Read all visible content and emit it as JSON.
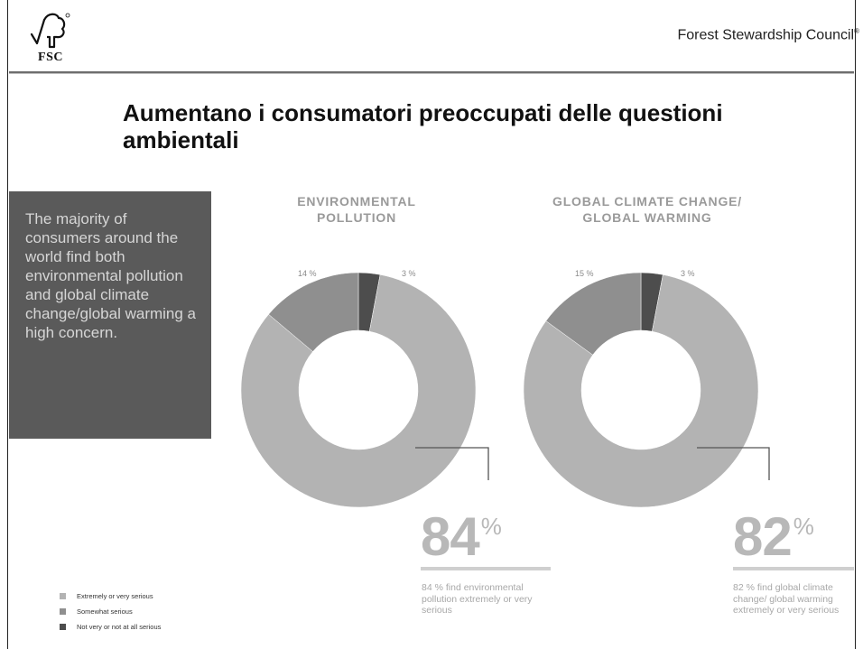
{
  "header": {
    "logo_text": "FSC",
    "organization": "Forest Stewardship Council",
    "organization_mark": "®"
  },
  "title": "Aumentano i consumatori preoccupati delle questioni ambientali",
  "callout_text": "The majority of consumers around the world find both environmental pollution and global climate change/global warming a high concern.",
  "colors": {
    "extremely_or_very_serious": "#b3b3b3",
    "somewhat_serious": "#8f8f8f",
    "not_very_or_not_at_all_serious": "#4d4d4d"
  },
  "chart_data": [
    {
      "type": "pie",
      "title": "ENVIRONMENTAL POLLUTION",
      "categories": [
        "Extremely or very serious",
        "Somewhat serious",
        "Not very or not at all serious"
      ],
      "values": [
        84,
        14,
        3
      ],
      "slice_labels": [
        "",
        "14 %",
        "3 %"
      ],
      "highlight_value": "84",
      "highlight_unit": "%",
      "description": "84 % find environmental pollution extremely or very serious"
    },
    {
      "type": "pie",
      "title": "GLOBAL CLIMATE CHANGE/ GLOBAL WARMING",
      "categories": [
        "Extremely or very serious",
        "Somewhat serious",
        "Not very or not at all serious"
      ],
      "values": [
        82,
        15,
        3
      ],
      "slice_labels": [
        "",
        "15 %",
        "3 %"
      ],
      "highlight_value": "82",
      "highlight_unit": "%",
      "description": "82 % find global climate change/ global warming extremely or very serious"
    }
  ],
  "legend": [
    "Extremely or very serious",
    "Somewhat serious",
    "Not very or not at all serious"
  ]
}
